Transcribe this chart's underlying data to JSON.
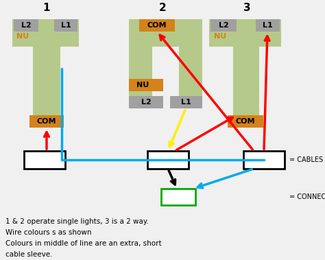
{
  "bg_color": "#f0f0f0",
  "title_numbers": [
    "1",
    "2",
    "3"
  ],
  "green_switch_color": "#b5c98a",
  "orange_color": "#d4821a",
  "gray_color": "#a0a0a0",
  "green_connector_color": "#00aa00",
  "red": "#ff0000",
  "blue": "#00aaee",
  "yellow": "#ffee00",
  "black": "#000000",
  "text_lines": [
    "1 & 2 operate single lights, 3 is a 2 way.",
    "Wire colours s as shown",
    "Colours in middle of line are an extra, short",
    "cable sleeve."
  ]
}
